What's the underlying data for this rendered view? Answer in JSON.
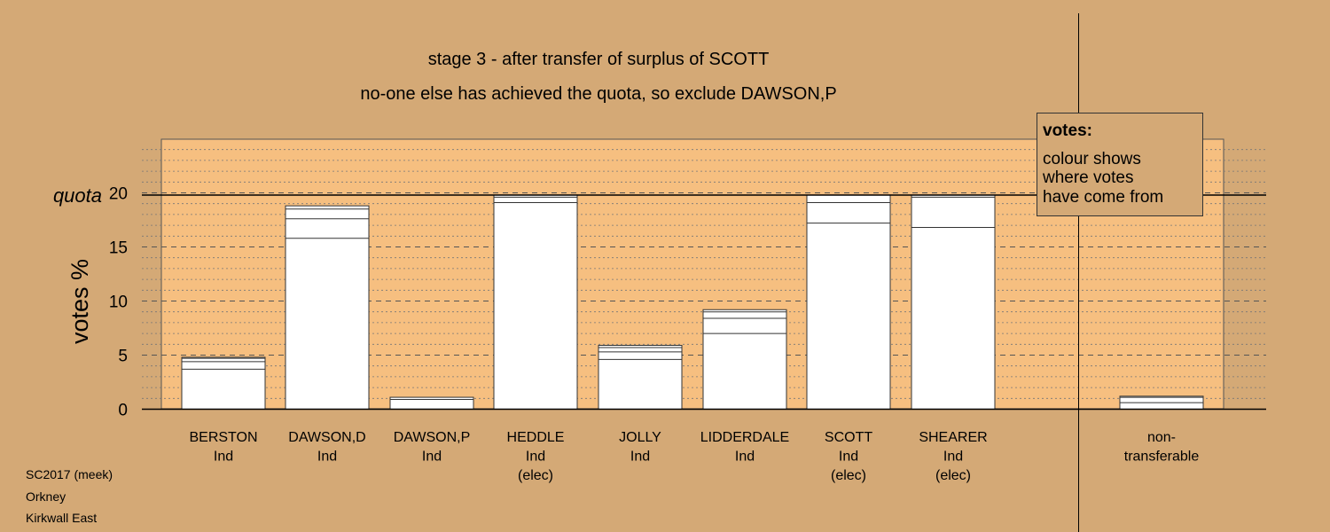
{
  "chart_data": {
    "type": "bar",
    "title": "stage 3 - after transfer of surplus of SCOTT",
    "subtitle": "no-one else has achieved the quota, so exclude DAWSON,P",
    "ylabel": "votes %",
    "xlabel": "",
    "ylim": [
      0,
      25
    ],
    "yticks": [
      0,
      5,
      10,
      15,
      20
    ],
    "quota": {
      "label": "quota",
      "value": 19.8
    },
    "grid": true,
    "categories": [
      {
        "name": "BERSTON",
        "party": "Ind",
        "status": ""
      },
      {
        "name": "DAWSON,D",
        "party": "Ind",
        "status": ""
      },
      {
        "name": "DAWSON,P",
        "party": "Ind",
        "status": ""
      },
      {
        "name": "HEDDLE",
        "party": "Ind",
        "status": "(elec)"
      },
      {
        "name": "JOLLY",
        "party": "Ind",
        "status": ""
      },
      {
        "name": "LIDDERDALE",
        "party": "Ind",
        "status": ""
      },
      {
        "name": "SCOTT",
        "party": "Ind",
        "status": "(elec)"
      },
      {
        "name": "SHEARER",
        "party": "Ind",
        "status": "(elec)"
      },
      {
        "name": "non-",
        "party": "transferable",
        "status": ""
      }
    ],
    "values": [
      4.8,
      18.8,
      1.1,
      19.8,
      5.9,
      9.2,
      19.8,
      19.8,
      1.2
    ],
    "segment_boundaries": [
      [
        3.7,
        4.4,
        4.7
      ],
      [
        15.8,
        17.6,
        18.5
      ],
      [
        0.9
      ],
      [
        19.1,
        19.6
      ],
      [
        4.6,
        5.3,
        5.7
      ],
      [
        7.0,
        8.4,
        9.0
      ],
      [
        17.2,
        19.1
      ],
      [
        16.8,
        19.6
      ],
      [
        0.6,
        1.1
      ]
    ],
    "bar_color": "#ffffff",
    "plot_bg": "#f6bf80",
    "page_bg": "#d4a976"
  },
  "legend": {
    "title": "votes:",
    "lines": [
      "colour shows",
      "where votes",
      "have come from"
    ]
  },
  "footer": [
    "SC2017 (meek)",
    "Orkney",
    "Kirkwall East"
  ]
}
